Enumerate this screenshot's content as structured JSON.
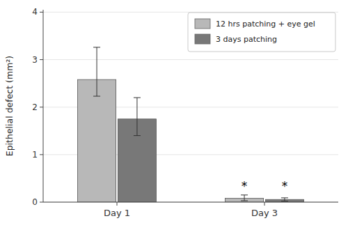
{
  "chart_data": {
    "type": "bar",
    "categories": [
      "Day 1",
      "Day 3"
    ],
    "series": [
      {
        "name": "12 hrs patching + eye gel",
        "color": "#b8b8b8",
        "values": [
          2.58,
          0.08
        ],
        "errors_upper": [
          0.68,
          0.07
        ],
        "errors_lower": [
          0.35,
          0.05
        ]
      },
      {
        "name": "3 days patching",
        "color": "#787878",
        "values": [
          1.75,
          0.055
        ],
        "errors_upper": [
          0.45,
          0.035
        ],
        "errors_lower": [
          0.35,
          0.035
        ]
      }
    ],
    "ylabel": "Epithelial defect (mm²)",
    "ylim": [
      0,
      4.05
    ],
    "yticks": [
      0,
      1,
      2,
      3,
      4
    ],
    "legend": "upper right",
    "annotations": [
      {
        "text": "*",
        "x": "Day 3",
        "series": "12 hrs patching + eye gel",
        "y": 0.38
      },
      {
        "text": "*",
        "x": "Day 3",
        "series": "3 days patching",
        "y": 0.38
      }
    ]
  }
}
